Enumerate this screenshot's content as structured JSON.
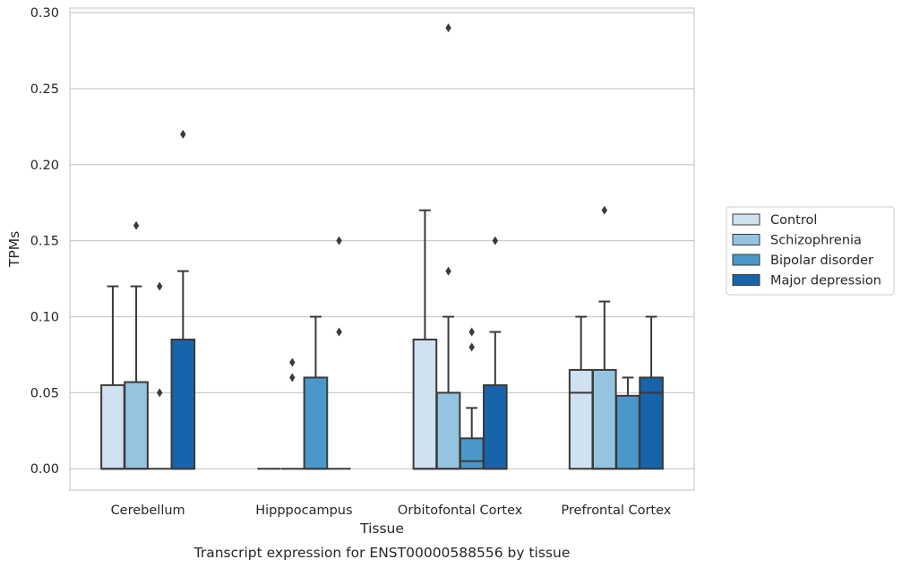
{
  "chart_data": {
    "type": "box",
    "xlabel": "Tissue",
    "ylabel": "TPMs",
    "caption": "Transcript expression for ENST00000588556 by tissue",
    "ylim": [
      -0.014,
      0.303
    ],
    "yticks": [
      0.0,
      0.05,
      0.1,
      0.15,
      0.2,
      0.25,
      0.3
    ],
    "ytick_labels": [
      "0.00",
      "0.05",
      "0.10",
      "0.15",
      "0.20",
      "0.25",
      "0.30"
    ],
    "grid": "horizontal",
    "legend_position": "right",
    "categories": [
      "Cerebellum",
      "Hipppocampus",
      "Orbitofontal Cortex",
      "Prefrontal Cortex"
    ],
    "series": [
      {
        "name": "Control",
        "color": "#d0e1f2",
        "boxes": [
          {
            "q1": 0.0,
            "median": 0.0,
            "q3": 0.055,
            "whisker_low": 0.0,
            "whisker_high": 0.12,
            "outliers": []
          },
          {
            "q1": 0.0,
            "median": 0.0,
            "q3": 0.0,
            "whisker_low": 0.0,
            "whisker_high": 0.0,
            "outliers": []
          },
          {
            "q1": 0.0,
            "median": 0.0,
            "q3": 0.085,
            "whisker_low": 0.0,
            "whisker_high": 0.17,
            "outliers": []
          },
          {
            "q1": 0.0,
            "median": 0.05,
            "q3": 0.065,
            "whisker_low": 0.0,
            "whisker_high": 0.1,
            "outliers": []
          }
        ]
      },
      {
        "name": "Schizophrenia",
        "color": "#94c4df",
        "boxes": [
          {
            "q1": 0.0,
            "median": 0.0,
            "q3": 0.057,
            "whisker_low": 0.0,
            "whisker_high": 0.12,
            "outliers": [
              0.16
            ]
          },
          {
            "q1": 0.0,
            "median": 0.0,
            "q3": 0.0,
            "whisker_low": 0.0,
            "whisker_high": 0.0,
            "outliers": [
              0.06,
              0.07
            ]
          },
          {
            "q1": 0.0,
            "median": 0.0,
            "q3": 0.05,
            "whisker_low": 0.0,
            "whisker_high": 0.1,
            "outliers": [
              0.13,
              0.29
            ]
          },
          {
            "q1": 0.0,
            "median": 0.0,
            "q3": 0.065,
            "whisker_low": 0.0,
            "whisker_high": 0.11,
            "outliers": [
              0.17
            ]
          }
        ]
      },
      {
        "name": "Bipolar disorder",
        "color": "#4a98c9",
        "boxes": [
          {
            "q1": 0.0,
            "median": 0.0,
            "q3": 0.0,
            "whisker_low": 0.0,
            "whisker_high": 0.0,
            "outliers": [
              0.05,
              0.12
            ]
          },
          {
            "q1": 0.0,
            "median": 0.0,
            "q3": 0.06,
            "whisker_low": 0.0,
            "whisker_high": 0.1,
            "outliers": []
          },
          {
            "q1": 0.0,
            "median": 0.005,
            "q3": 0.02,
            "whisker_low": 0.0,
            "whisker_high": 0.04,
            "outliers": [
              0.08,
              0.09
            ]
          },
          {
            "q1": 0.0,
            "median": 0.0,
            "q3": 0.048,
            "whisker_low": 0.0,
            "whisker_high": 0.06,
            "outliers": []
          }
        ]
      },
      {
        "name": "Major depression",
        "color": "#1764ab",
        "boxes": [
          {
            "q1": 0.0,
            "median": 0.0,
            "q3": 0.085,
            "whisker_low": 0.0,
            "whisker_high": 0.13,
            "outliers": [
              0.22
            ]
          },
          {
            "q1": 0.0,
            "median": 0.0,
            "q3": 0.0,
            "whisker_low": 0.0,
            "whisker_high": 0.0,
            "outliers": [
              0.09,
              0.15
            ]
          },
          {
            "q1": 0.0,
            "median": 0.0,
            "q3": 0.055,
            "whisker_low": 0.0,
            "whisker_high": 0.09,
            "outliers": [
              0.15
            ]
          },
          {
            "q1": 0.0,
            "median": 0.05,
            "q3": 0.06,
            "whisker_low": 0.0,
            "whisker_high": 0.1,
            "outliers": []
          }
        ]
      }
    ]
  }
}
